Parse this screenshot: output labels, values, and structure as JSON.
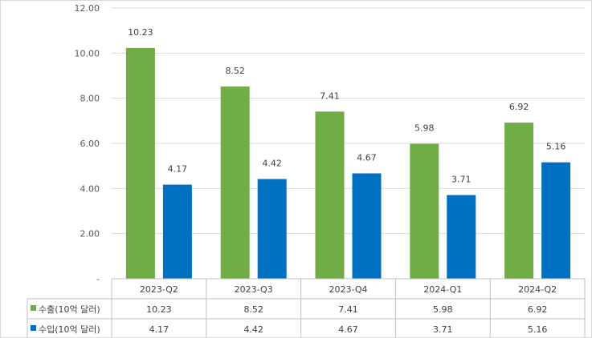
{
  "chart_data": {
    "type": "bar",
    "categories": [
      "2023-Q2",
      "2023-Q3",
      "2023-Q4",
      "2024-Q1",
      "2024-Q2"
    ],
    "series": [
      {
        "name": "수출(10억 달러)",
        "values": [
          10.23,
          8.52,
          7.41,
          5.98,
          6.92
        ],
        "color": "#70ad47"
      },
      {
        "name": "수입(10억 달러)",
        "values": [
          4.17,
          4.42,
          4.67,
          3.71,
          5.16
        ],
        "color": "#0070c0"
      }
    ],
    "ylim": [
      0,
      12
    ],
    "yticks": [
      "-",
      "2.00",
      "4.00",
      "6.00",
      "8.00",
      "10.00",
      "12.00"
    ],
    "gridlines": true,
    "data_table": true,
    "title": "",
    "xlabel": "",
    "ylabel": ""
  }
}
